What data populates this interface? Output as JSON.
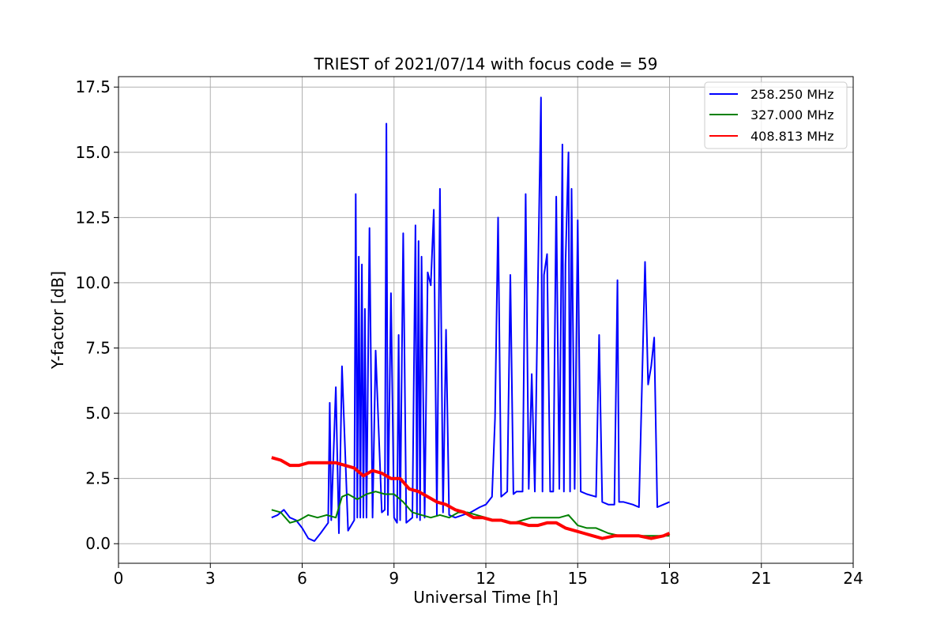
{
  "chart_data": {
    "type": "line",
    "title": "TRIEST of 2021/07/14 with focus code = 59",
    "xlabel": "Universal Time [h]",
    "ylabel": "Y-factor [dB]",
    "xlim": [
      0,
      24
    ],
    "ylim": [
      -0.75,
      17.9
    ],
    "xticks": [
      0,
      3,
      6,
      9,
      12,
      15,
      18,
      21,
      24
    ],
    "xtick_labels": [
      "0",
      "3",
      "6",
      "9",
      "12",
      "15",
      "18",
      "21",
      "24"
    ],
    "yticks": [
      0,
      2.5,
      5,
      7.5,
      10,
      12.5,
      15,
      17.5
    ],
    "ytick_labels": [
      "0.0",
      "2.5",
      "5.0",
      "7.5",
      "10.0",
      "12.5",
      "15.0",
      "17.5"
    ],
    "grid": true,
    "legend_position": "top-right",
    "series": [
      {
        "name": "258.250 MHz",
        "color": "#0000ff",
        "x": [
          5.0,
          5.2,
          5.4,
          5.6,
          5.8,
          6.0,
          6.2,
          6.4,
          6.6,
          6.85,
          6.9,
          6.95,
          7.1,
          7.2,
          7.3,
          7.5,
          7.7,
          7.75,
          7.8,
          7.85,
          7.9,
          7.95,
          8.0,
          8.05,
          8.1,
          8.2,
          8.3,
          8.4,
          8.6,
          8.7,
          8.75,
          8.8,
          8.9,
          9.0,
          9.1,
          9.15,
          9.2,
          9.3,
          9.4,
          9.5,
          9.6,
          9.7,
          9.75,
          9.8,
          9.85,
          9.9,
          10.0,
          10.1,
          10.2,
          10.3,
          10.4,
          10.5,
          10.6,
          10.7,
          10.8,
          11.0,
          11.5,
          11.8,
          12.0,
          12.2,
          12.3,
          12.4,
          12.5,
          12.7,
          12.8,
          12.9,
          13.0,
          13.2,
          13.3,
          13.4,
          13.5,
          13.6,
          13.7,
          13.8,
          13.85,
          13.9,
          14.0,
          14.1,
          14.2,
          14.3,
          14.4,
          14.5,
          14.55,
          14.6,
          14.7,
          14.75,
          14.8,
          14.9,
          15.0,
          15.1,
          15.3,
          15.6,
          15.7,
          15.8,
          16.0,
          16.2,
          16.3,
          16.35,
          16.5,
          16.8,
          17.0,
          17.2,
          17.3,
          17.4,
          17.5,
          17.6,
          17.8,
          18.0
        ],
        "values": [
          1.0,
          1.1,
          1.3,
          1.0,
          0.9,
          0.6,
          0.2,
          0.1,
          0.4,
          0.8,
          5.4,
          0.9,
          6.0,
          0.4,
          6.8,
          0.5,
          0.9,
          13.4,
          1.0,
          11.0,
          1.0,
          10.7,
          1.0,
          9.0,
          1.0,
          12.1,
          1.0,
          7.4,
          1.2,
          1.3,
          16.1,
          1.1,
          9.6,
          1.0,
          0.8,
          8.0,
          0.9,
          11.9,
          0.8,
          0.9,
          1.0,
          12.2,
          1.0,
          11.6,
          0.9,
          11.0,
          1.0,
          10.4,
          9.9,
          12.8,
          1.1,
          13.6,
          1.2,
          8.2,
          1.1,
          1.0,
          1.2,
          1.4,
          1.5,
          1.8,
          4.8,
          12.5,
          1.8,
          2.0,
          10.3,
          1.9,
          2.0,
          2.0,
          13.4,
          2.1,
          6.5,
          2.0,
          10.0,
          17.1,
          2.0,
          10.3,
          11.1,
          2.0,
          2.0,
          13.3,
          2.1,
          15.3,
          2.0,
          10.7,
          15.0,
          2.0,
          13.6,
          2.1,
          12.4,
          2.0,
          1.9,
          1.8,
          8.0,
          1.6,
          1.5,
          1.5,
          10.1,
          1.6,
          1.6,
          1.5,
          1.4,
          10.8,
          6.1,
          6.8,
          7.9,
          1.4,
          1.5,
          1.6
        ]
      },
      {
        "name": "327.000 MHz",
        "color": "#008000",
        "x": [
          5.0,
          5.3,
          5.6,
          5.9,
          6.2,
          6.5,
          6.8,
          7.1,
          7.3,
          7.5,
          7.8,
          8.1,
          8.4,
          8.7,
          9.0,
          9.3,
          9.6,
          9.9,
          10.2,
          10.5,
          10.8,
          11.1,
          11.4,
          11.7,
          12.0,
          12.3,
          12.6,
          12.9,
          13.2,
          13.5,
          13.8,
          14.1,
          14.4,
          14.7,
          15.0,
          15.3,
          15.6,
          16.0,
          16.4,
          16.8,
          17.2,
          17.6,
          18.0
        ],
        "values": [
          1.3,
          1.2,
          0.8,
          0.9,
          1.1,
          1.0,
          1.1,
          1.0,
          1.8,
          1.9,
          1.7,
          1.9,
          2.0,
          1.9,
          1.9,
          1.6,
          1.2,
          1.1,
          1.0,
          1.1,
          1.0,
          1.2,
          1.2,
          1.1,
          1.0,
          0.9,
          0.9,
          0.8,
          0.9,
          1.0,
          1.0,
          1.0,
          1.0,
          1.1,
          0.7,
          0.6,
          0.6,
          0.4,
          0.3,
          0.3,
          0.3,
          0.3,
          0.3
        ]
      },
      {
        "name": "408.813 MHz",
        "color": "#ff0000",
        "x": [
          5.0,
          5.3,
          5.6,
          5.9,
          6.2,
          6.5,
          6.8,
          7.1,
          7.4,
          7.7,
          8.0,
          8.3,
          8.6,
          8.9,
          9.2,
          9.5,
          9.8,
          10.1,
          10.4,
          10.7,
          11.0,
          11.3,
          11.6,
          11.9,
          12.2,
          12.5,
          12.8,
          13.1,
          13.4,
          13.7,
          14.0,
          14.3,
          14.6,
          14.9,
          15.2,
          15.5,
          15.8,
          16.2,
          16.6,
          17.0,
          17.4,
          17.8,
          18.0
        ],
        "values": [
          3.3,
          3.2,
          3.0,
          3.0,
          3.1,
          3.1,
          3.1,
          3.1,
          3.0,
          2.9,
          2.6,
          2.8,
          2.7,
          2.5,
          2.5,
          2.1,
          2.0,
          1.8,
          1.6,
          1.5,
          1.3,
          1.2,
          1.0,
          1.0,
          0.9,
          0.9,
          0.8,
          0.8,
          0.7,
          0.7,
          0.8,
          0.8,
          0.6,
          0.5,
          0.4,
          0.3,
          0.2,
          0.3,
          0.3,
          0.3,
          0.2,
          0.3,
          0.4
        ]
      }
    ]
  }
}
